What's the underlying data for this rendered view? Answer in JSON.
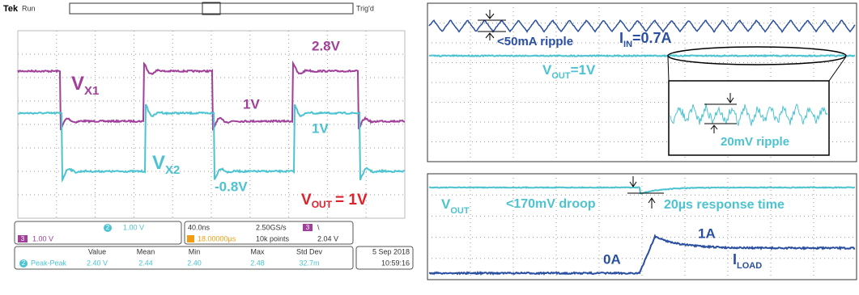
{
  "left_scope": {
    "brand": "Tek",
    "status": "Run",
    "trigger": "Trig'd",
    "labels": {
      "vx1": {
        "main": "V",
        "sub": "X1"
      },
      "vx1_high": "2.8V",
      "vx1_low": "1V",
      "vx2_high": "1V",
      "vx2": {
        "main": "V",
        "sub": "X2"
      },
      "vx2_low": "-0.8V",
      "vout": {
        "main": "V",
        "sub": "OUT",
        "rest": "= 1V"
      }
    },
    "channels": [
      {
        "number": "2",
        "scale": "1.00 V"
      },
      {
        "number": "3",
        "scale": "1.00 V"
      }
    ],
    "timebase": {
      "scale": "40.0ns",
      "rate": "2.50GS/s",
      "trigger_channel": "3",
      "trigger_slope": "\\",
      "position": "18.00000µs",
      "record": "10k points",
      "trigger_level": "2.04 V"
    },
    "measurements": {
      "headers": [
        "Value",
        "Mean",
        "Min",
        "Max",
        "Std Dev"
      ],
      "row": {
        "channel": "2",
        "name": "Peak-Peak",
        "cells": [
          "2.40 V",
          "2.44",
          "2.40",
          "2.48",
          "32.7m"
        ]
      }
    },
    "date": "5 Sep 2018",
    "time": "10:59:16"
  },
  "right_top": {
    "ripple_in": "<50mA ripple",
    "iin": {
      "main": "I",
      "sub": "IN",
      "rest": "=0.7A"
    },
    "vout": {
      "main": "V",
      "sub": "OUT",
      "rest": "=1V"
    },
    "ripple_out": "20mV ripple"
  },
  "right_bottom": {
    "vout": {
      "main": "V",
      "sub": "OUT"
    },
    "droop": "<170mV droop",
    "response": "20µs response time",
    "i0": "0A",
    "i1": "1A",
    "iload": {
      "main": "I",
      "sub": "LOAD"
    }
  }
}
